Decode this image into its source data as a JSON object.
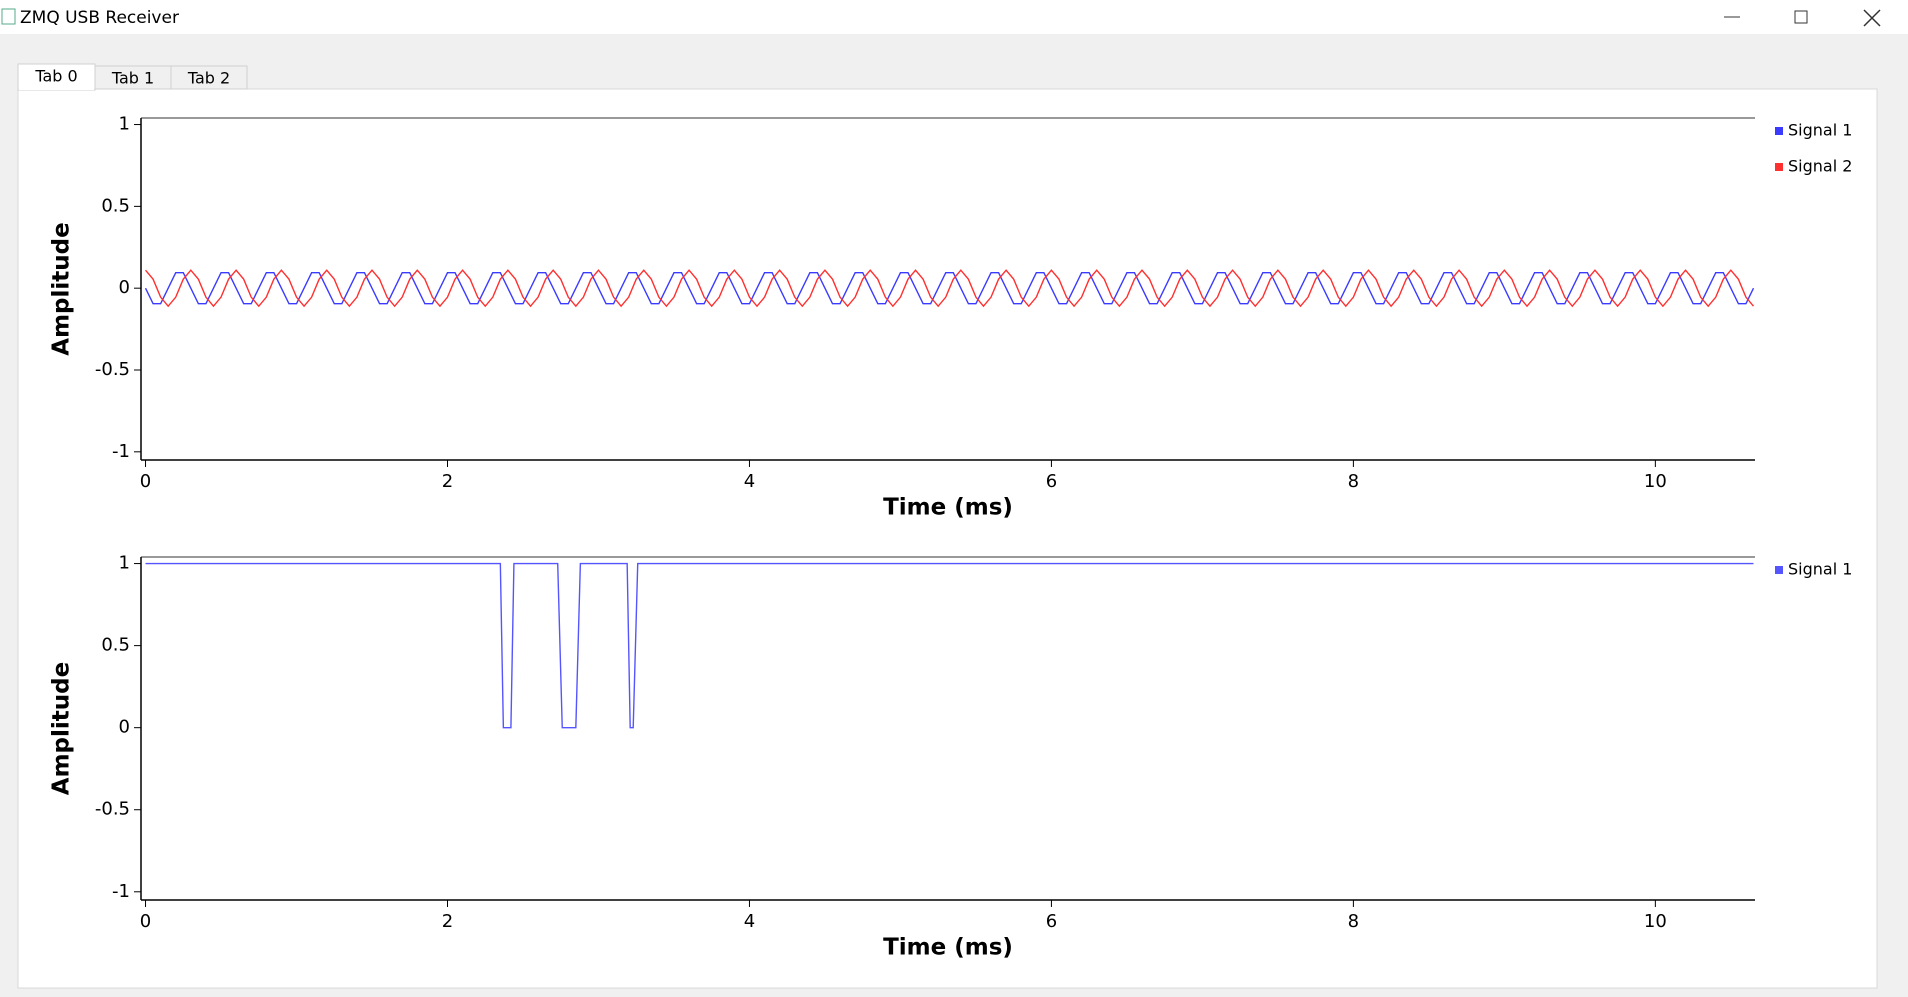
{
  "window": {
    "title": "ZMQ USB Receiver",
    "tabs": [
      "Tab 0",
      "Tab 1",
      "Tab 2"
    ]
  },
  "chart_data": [
    {
      "type": "line",
      "x_label": "Time (ms)",
      "y_label": "Amplitude",
      "legend": "right",
      "xlim": [
        -0.03,
        10.66
      ],
      "ylim": [
        -1.05,
        1.04
      ],
      "xticks": [
        0,
        2,
        4,
        6,
        8,
        10
      ],
      "yticks": [
        1,
        0.5,
        0,
        -0.5,
        -1
      ],
      "x": [
        0,
        0.05,
        0.1,
        0.15,
        0.2,
        0.25,
        0.3,
        0.35,
        0.4,
        0.45,
        0.5,
        0.55,
        0.6,
        0.65,
        0.7,
        0.75,
        0.8,
        0.85,
        0.9,
        0.95,
        1,
        1.05,
        1.1,
        1.15,
        1.2,
        1.25,
        1.3,
        1.35,
        1.4,
        1.45,
        1.5,
        1.55,
        1.6,
        1.65,
        1.7,
        1.75,
        1.8,
        1.85,
        1.9,
        1.95,
        2,
        2.05,
        2.1,
        2.15,
        2.2,
        2.25,
        2.3,
        2.35,
        2.4,
        2.45,
        2.5,
        2.55,
        2.6,
        2.65,
        2.7,
        2.75,
        2.8,
        2.85,
        2.9,
        2.95,
        3,
        3.05,
        3.1,
        3.15,
        3.2,
        3.25,
        3.3,
        3.35,
        3.4,
        3.45,
        3.5,
        3.55,
        3.6,
        3.65,
        3.7,
        3.75,
        3.8,
        3.85,
        3.9,
        3.95,
        4,
        4.05,
        4.1,
        4.15,
        4.2,
        4.25,
        4.3,
        4.35,
        4.4,
        4.45,
        4.5,
        4.55,
        4.6,
        4.65,
        4.7,
        4.75,
        4.8,
        4.85,
        4.9,
        4.95,
        5,
        5.05,
        5.1,
        5.15,
        5.2,
        5.25,
        5.3,
        5.35,
        5.4,
        5.45,
        5.5,
        5.55,
        5.6,
        5.65,
        5.7,
        5.75,
        5.8,
        5.85,
        5.9,
        5.95,
        6,
        6.05,
        6.1,
        6.15,
        6.2,
        6.25,
        6.3,
        6.35,
        6.4,
        6.45,
        6.5,
        6.55,
        6.6,
        6.65,
        6.7,
        6.75,
        6.8,
        6.85,
        6.9,
        6.95,
        7,
        7.05,
        7.1,
        7.15,
        7.2,
        7.25,
        7.3,
        7.35,
        7.4,
        7.45,
        7.5,
        7.55,
        7.6,
        7.65,
        7.7,
        7.75,
        7.8,
        7.85,
        7.9,
        7.95,
        8,
        8.05,
        8.1,
        8.15,
        8.2,
        8.25,
        8.3,
        8.35,
        8.4,
        8.45,
        8.5,
        8.55,
        8.6,
        8.65,
        8.7,
        8.75,
        8.8,
        8.85,
        8.9,
        8.95,
        9,
        9.05,
        9.1,
        9.15,
        9.2,
        9.25,
        9.3,
        9.35,
        9.4,
        9.45,
        9.5,
        9.55,
        9.6,
        9.65,
        9.7,
        9.75,
        9.8,
        9.85,
        9.9,
        9.95,
        10,
        10.05,
        10.1,
        10.15,
        10.2,
        10.25,
        10.3,
        10.35,
        10.4,
        10.45,
        10.5,
        10.55,
        10.6,
        10.65
      ],
      "series": [
        {
          "name": "Signal 1",
          "color": "#3b3bff",
          "values": [
            0,
            -0.095,
            -0.095,
            0,
            0.095,
            0.095,
            0,
            -0.095,
            -0.095,
            0,
            0.095,
            0.095,
            0,
            -0.095,
            -0.095,
            0,
            0.095,
            0.095,
            0,
            -0.095,
            -0.095,
            0,
            0.095,
            0.095,
            0,
            -0.095,
            -0.095,
            0,
            0.095,
            0.095,
            0,
            -0.095,
            -0.095,
            0,
            0.095,
            0.095,
            0,
            -0.095,
            -0.095,
            0,
            0.095,
            0.095,
            0,
            -0.095,
            -0.095,
            0,
            0.095,
            0.095,
            0,
            -0.095,
            -0.095,
            0,
            0.095,
            0.095,
            0,
            -0.095,
            -0.095,
            0,
            0.095,
            0.095,
            0,
            -0.095,
            -0.095,
            0,
            0.095,
            0.095,
            0,
            -0.095,
            -0.095,
            0,
            0.095,
            0.095,
            0,
            -0.095,
            -0.095,
            0,
            0.095,
            0.095,
            0,
            -0.095,
            -0.095,
            0,
            0.095,
            0.095,
            0,
            -0.095,
            -0.095,
            0,
            0.095,
            0.095,
            0,
            -0.095,
            -0.095,
            0,
            0.095,
            0.095,
            0,
            -0.095,
            -0.095,
            0,
            0.095,
            0.095,
            0,
            -0.095,
            -0.095,
            0,
            0.095,
            0.095,
            0,
            -0.095,
            -0.095,
            0,
            0.095,
            0.095,
            0,
            -0.095,
            -0.095,
            0,
            0.095,
            0.095,
            0,
            -0.095,
            -0.095,
            0,
            0.095,
            0.095,
            0,
            -0.095,
            -0.095,
            0,
            0.095,
            0.095,
            0,
            -0.095,
            -0.095,
            0,
            0.095,
            0.095,
            0,
            -0.095,
            -0.095,
            0,
            0.095,
            0.095,
            0,
            -0.095,
            -0.095,
            0,
            0.095,
            0.095,
            0,
            -0.095,
            -0.095,
            0,
            0.095,
            0.095,
            0,
            -0.095,
            -0.095,
            0,
            0.095,
            0.095,
            0,
            -0.095,
            -0.095,
            0,
            0.095,
            0.095,
            0,
            -0.095,
            -0.095,
            0,
            0.095,
            0.095,
            0,
            -0.095,
            -0.095,
            0,
            0.095,
            0.095,
            0,
            -0.095,
            -0.095,
            0,
            0.095,
            0.095,
            0,
            -0.095,
            -0.095,
            0,
            0.095,
            0.095,
            0,
            -0.095,
            -0.095,
            0,
            0.095,
            0.095,
            0,
            -0.095,
            -0.095,
            0,
            0.095,
            0.095,
            0,
            -0.095,
            -0.095,
            0,
            0.095,
            0.095,
            0,
            -0.095,
            -0.095,
            0
          ]
        },
        {
          "name": "Signal 2",
          "color": "#ff3030",
          "values": [
            0.11,
            0.055,
            -0.055,
            -0.11,
            -0.055,
            0.055,
            0.11,
            0.055,
            -0.055,
            -0.11,
            -0.055,
            0.055,
            0.11,
            0.055,
            -0.055,
            -0.11,
            -0.055,
            0.055,
            0.11,
            0.055,
            -0.055,
            -0.11,
            -0.055,
            0.055,
            0.11,
            0.055,
            -0.055,
            -0.11,
            -0.055,
            0.055,
            0.11,
            0.055,
            -0.055,
            -0.11,
            -0.055,
            0.055,
            0.11,
            0.055,
            -0.055,
            -0.11,
            -0.055,
            0.055,
            0.11,
            0.055,
            -0.055,
            -0.11,
            -0.055,
            0.055,
            0.11,
            0.055,
            -0.055,
            -0.11,
            -0.055,
            0.055,
            0.11,
            0.055,
            -0.055,
            -0.11,
            -0.055,
            0.055,
            0.11,
            0.055,
            -0.055,
            -0.11,
            -0.055,
            0.055,
            0.11,
            0.055,
            -0.055,
            -0.11,
            -0.055,
            0.055,
            0.11,
            0.055,
            -0.055,
            -0.11,
            -0.055,
            0.055,
            0.11,
            0.055,
            -0.055,
            -0.11,
            -0.055,
            0.055,
            0.11,
            0.055,
            -0.055,
            -0.11,
            -0.055,
            0.055,
            0.11,
            0.055,
            -0.055,
            -0.11,
            -0.055,
            0.055,
            0.11,
            0.055,
            -0.055,
            -0.11,
            -0.055,
            0.055,
            0.11,
            0.055,
            -0.055,
            -0.11,
            -0.055,
            0.055,
            0.11,
            0.055,
            -0.055,
            -0.11,
            -0.055,
            0.055,
            0.11,
            0.055,
            -0.055,
            -0.11,
            -0.055,
            0.055,
            0.11,
            0.055,
            -0.055,
            -0.11,
            -0.055,
            0.055,
            0.11,
            0.055,
            -0.055,
            -0.11,
            -0.055,
            0.055,
            0.11,
            0.055,
            -0.055,
            -0.11,
            -0.055,
            0.055,
            0.11,
            0.055,
            -0.055,
            -0.11,
            -0.055,
            0.055,
            0.11,
            0.055,
            -0.055,
            -0.11,
            -0.055,
            0.055,
            0.11,
            0.055,
            -0.055,
            -0.11,
            -0.055,
            0.055,
            0.11,
            0.055,
            -0.055,
            -0.11,
            -0.055,
            0.055,
            0.11,
            0.055,
            -0.055,
            -0.11,
            -0.055,
            0.055,
            0.11,
            0.055,
            -0.055,
            -0.11,
            -0.055,
            0.055,
            0.11,
            0.055,
            -0.055,
            -0.11,
            -0.055,
            0.055,
            0.11,
            0.055,
            -0.055,
            -0.11,
            -0.055,
            0.055,
            0.11,
            0.055,
            -0.055,
            -0.11,
            -0.055,
            0.055,
            0.11,
            0.055,
            -0.055,
            -0.11,
            -0.055,
            0.055,
            0.11,
            0.055,
            -0.055,
            -0.11,
            -0.055,
            0.055,
            0.11,
            0.055,
            -0.055,
            -0.11,
            -0.055,
            0.055,
            0.11,
            0.055,
            -0.055,
            -0.11
          ]
        }
      ]
    },
    {
      "type": "line",
      "x_label": "Time (ms)",
      "y_label": "Amplitude",
      "legend": "right",
      "xlim": [
        -0.03,
        10.66
      ],
      "ylim": [
        -1.05,
        1.04
      ],
      "xticks": [
        0,
        2,
        4,
        6,
        8,
        10
      ],
      "yticks": [
        1,
        0.5,
        0,
        -0.5,
        -1
      ],
      "x": [
        0,
        2.35,
        2.37,
        2.42,
        2.44,
        2.73,
        2.76,
        2.85,
        2.88,
        3.19,
        3.21,
        3.23,
        3.26,
        10.65
      ],
      "series": [
        {
          "name": "Signal 1",
          "color": "#5555ff",
          "values": [
            1,
            1,
            0,
            0,
            1,
            1,
            0,
            0,
            1,
            1,
            0,
            0,
            1,
            1
          ]
        }
      ]
    }
  ]
}
